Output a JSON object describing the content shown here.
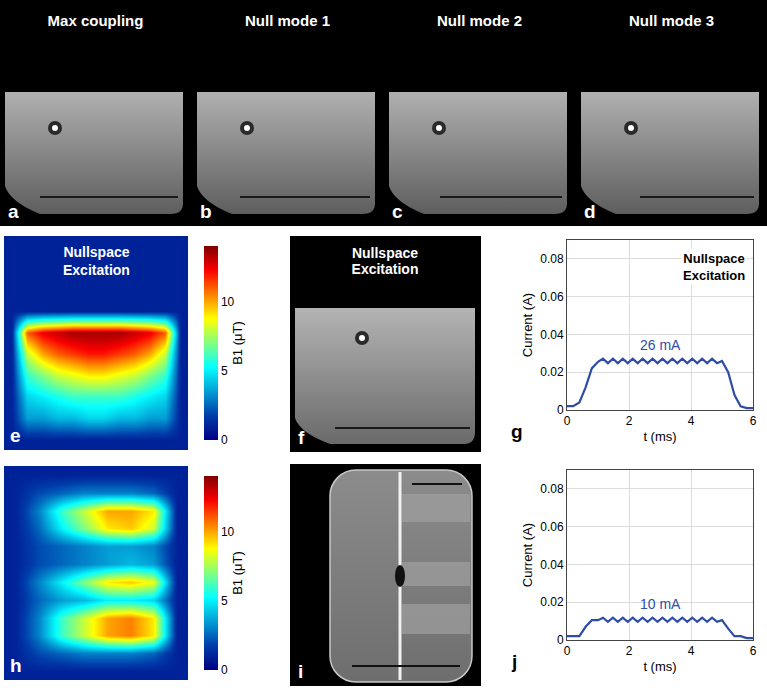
{
  "panels_top": [
    {
      "letter": "a",
      "title": "Max coupling"
    },
    {
      "letter": "b",
      "title": "Null mode 1"
    },
    {
      "letter": "c",
      "title": "Null mode 2"
    },
    {
      "letter": "d",
      "title": "Null mode 3"
    }
  ],
  "panel_f": {
    "letter": "f",
    "title": "Nullspace Excitation"
  },
  "panel_i": {
    "letter": "i"
  },
  "chart_data": [
    {
      "type": "heatmap",
      "letter": "e",
      "title": "Nullspace Excitation",
      "tick_labels": false,
      "cells": [
        [
          1,
          1,
          1,
          1,
          1,
          1,
          1,
          1,
          1,
          1,
          1,
          1
        ],
        [
          1,
          1,
          1,
          1,
          1,
          1,
          1,
          1,
          1,
          1,
          1,
          1
        ],
        [
          1,
          1,
          1,
          1,
          1,
          1,
          1,
          1,
          1,
          1,
          1,
          1
        ],
        [
          1,
          1,
          1,
          1,
          1,
          1,
          1,
          1,
          1,
          1,
          1,
          1
        ],
        [
          1,
          11,
          12.5,
          13,
          13.5,
          13.5,
          13.5,
          13.5,
          13,
          12.5,
          11,
          1
        ],
        [
          1,
          8,
          10,
          11,
          11.5,
          12,
          12,
          11.5,
          11,
          10,
          8,
          1
        ],
        [
          1,
          6,
          7,
          8,
          8.5,
          9,
          9,
          8.5,
          8,
          7,
          6,
          1
        ],
        [
          1,
          4.5,
          5,
          5.5,
          6,
          6,
          6,
          6,
          5.5,
          5,
          4.5,
          1
        ],
        [
          1,
          3.5,
          3.5,
          4,
          4,
          4.5,
          4.5,
          4,
          4,
          3.5,
          3.5,
          1
        ],
        [
          1,
          1,
          1,
          1,
          1,
          1,
          1,
          1,
          1,
          1,
          1,
          1
        ]
      ],
      "colorbar": {
        "title": "B1 (μT)",
        "range": [
          0,
          14
        ],
        "ticks": [
          0,
          5,
          10
        ]
      }
    },
    {
      "type": "line",
      "letter": "g",
      "title": "Nullspace Excitation",
      "annotation": "26 mA",
      "x_label": "t (ms)",
      "y_label": "Current (A)",
      "grid": true,
      "xlim": [
        0,
        6
      ],
      "ylim": [
        0,
        0.09
      ],
      "xticks": [
        0,
        2,
        4,
        6
      ],
      "yticks": [
        0,
        0.02,
        0.04,
        0.06,
        0.08
      ],
      "x": [
        0,
        0.2,
        0.4,
        0.6,
        0.8,
        1.0,
        1.16,
        1.32,
        1.48,
        1.64,
        1.8,
        1.96,
        2.12,
        2.28,
        2.44,
        2.6,
        2.76,
        2.92,
        3.08,
        3.24,
        3.4,
        3.56,
        3.72,
        3.88,
        4.04,
        4.2,
        4.36,
        4.52,
        4.68,
        4.84,
        5.0,
        5.2,
        5.4,
        5.6,
        5.8,
        6.0
      ],
      "series": [
        {
          "color": "#2f4da6",
          "values": [
            0.002,
            0.002,
            0.004,
            0.012,
            0.022,
            0.0255,
            0.0272,
            0.0248,
            0.0272,
            0.0248,
            0.0272,
            0.0248,
            0.0272,
            0.0248,
            0.0272,
            0.0248,
            0.0272,
            0.0248,
            0.0272,
            0.0248,
            0.0272,
            0.0248,
            0.0272,
            0.0248,
            0.0272,
            0.0248,
            0.0272,
            0.0248,
            0.0272,
            0.0248,
            0.026,
            0.02,
            0.008,
            0.002,
            0.001,
            0.001
          ]
        }
      ]
    },
    {
      "type": "heatmap",
      "letter": "h",
      "tick_labels": false,
      "cells": [
        [
          1,
          1,
          1,
          1,
          1,
          1,
          1,
          1
        ],
        [
          1,
          2,
          2.5,
          3,
          3,
          3,
          2.5,
          1
        ],
        [
          1,
          3,
          6,
          8,
          10,
          10,
          9,
          1
        ],
        [
          1,
          2.5,
          5,
          7,
          9,
          9.5,
          8,
          1
        ],
        [
          1,
          2,
          2.5,
          3,
          3.5,
          3.5,
          3,
          1
        ],
        [
          1,
          2,
          2.5,
          3,
          3.5,
          4,
          3.5,
          1
        ],
        [
          1,
          3,
          5,
          7,
          9,
          9.5,
          8.5,
          1
        ],
        [
          1,
          2.5,
          3.5,
          4,
          5,
          5,
          4.5,
          1
        ],
        [
          1,
          3,
          6,
          8,
          10,
          10.5,
          9,
          1
        ],
        [
          1,
          3,
          6,
          8,
          10,
          10.5,
          9,
          1
        ],
        [
          1,
          2,
          2.5,
          3,
          3,
          3,
          2.5,
          1
        ],
        [
          1,
          1,
          1,
          1,
          1,
          1,
          1,
          1
        ]
      ],
      "colorbar": {
        "title": "B1 (μT)",
        "range": [
          0,
          14
        ],
        "ticks": [
          0,
          5,
          10
        ]
      }
    },
    {
      "type": "line",
      "letter": "j",
      "annotation": "10 mA",
      "x_label": "t (ms)",
      "y_label": "Current (A)",
      "grid": true,
      "xlim": [
        0,
        6
      ],
      "ylim": [
        0,
        0.09
      ],
      "xticks": [
        0,
        2,
        4,
        6
      ],
      "yticks": [
        0,
        0.02,
        0.04,
        0.06,
        0.08
      ],
      "x": [
        0,
        0.2,
        0.4,
        0.6,
        0.8,
        1.0,
        1.16,
        1.32,
        1.48,
        1.64,
        1.8,
        1.96,
        2.12,
        2.28,
        2.44,
        2.6,
        2.76,
        2.92,
        3.08,
        3.24,
        3.4,
        3.56,
        3.72,
        3.88,
        4.04,
        4.2,
        4.36,
        4.52,
        4.68,
        4.84,
        5.0,
        5.2,
        5.4,
        5.6,
        5.8,
        6.0
      ],
      "series": [
        {
          "color": "#2f4da6",
          "values": [
            0.002,
            0.002,
            0.002,
            0.007,
            0.0105,
            0.0105,
            0.0118,
            0.0096,
            0.0118,
            0.0096,
            0.0118,
            0.0096,
            0.0118,
            0.0096,
            0.0118,
            0.0096,
            0.0118,
            0.0096,
            0.0118,
            0.0096,
            0.0118,
            0.0096,
            0.0118,
            0.0096,
            0.0118,
            0.0096,
            0.0118,
            0.0096,
            0.0118,
            0.0096,
            0.0105,
            0.006,
            0.002,
            0.002,
            0.001,
            0.001
          ]
        }
      ]
    }
  ]
}
